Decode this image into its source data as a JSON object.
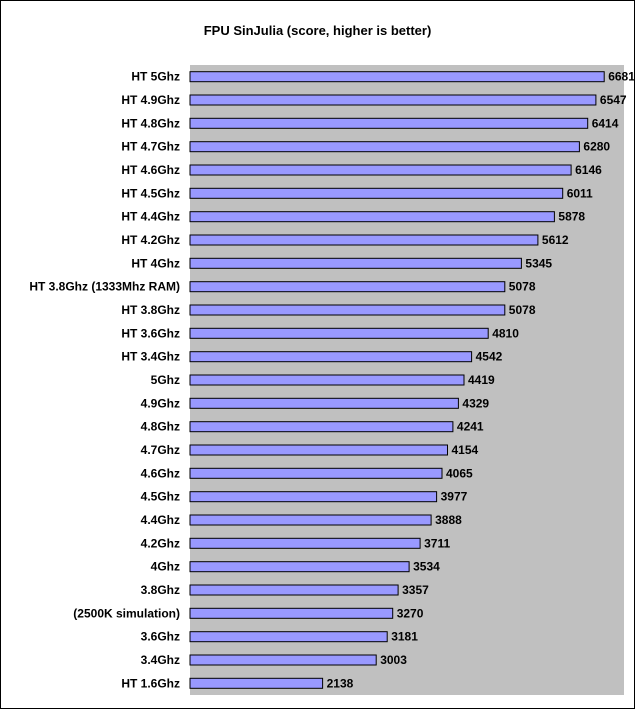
{
  "chart_data": {
    "type": "bar",
    "orientation": "horizontal",
    "title": "FPU SinJulia (score, higher is better)",
    "xlabel": "",
    "ylabel": "",
    "xlim": [
      0,
      7000
    ],
    "grid": false,
    "legend": "none",
    "colors": {
      "bar_fill": "#9999ff",
      "bar_stroke": "#000000",
      "plot_background": "#c0c0c0"
    },
    "categories": [
      "HT 5Ghz",
      "HT 4.9Ghz",
      "HT 4.8Ghz",
      "HT 4.7Ghz",
      "HT 4.6Ghz",
      "HT 4.5Ghz",
      "HT 4.4Ghz",
      "HT 4.2Ghz",
      "HT 4Ghz",
      "HT 3.8Ghz (1333Mhz RAM)",
      "HT 3.8Ghz",
      "HT 3.6Ghz",
      "HT 3.4Ghz",
      "5Ghz",
      "4.9Ghz",
      "4.8Ghz",
      "4.7Ghz",
      "4.6Ghz",
      "4.5Ghz",
      "4.4Ghz",
      "4.2Ghz",
      "4Ghz",
      "3.8Ghz",
      "(2500K simulation)",
      "3.6Ghz",
      "3.4Ghz",
      "HT 1.6Ghz"
    ],
    "values": [
      6681,
      6547,
      6414,
      6280,
      6146,
      6011,
      5878,
      5612,
      5345,
      5078,
      5078,
      4810,
      4542,
      4419,
      4329,
      4241,
      4154,
      4065,
      3977,
      3888,
      3711,
      3534,
      3357,
      3270,
      3181,
      3003,
      2138
    ]
  }
}
